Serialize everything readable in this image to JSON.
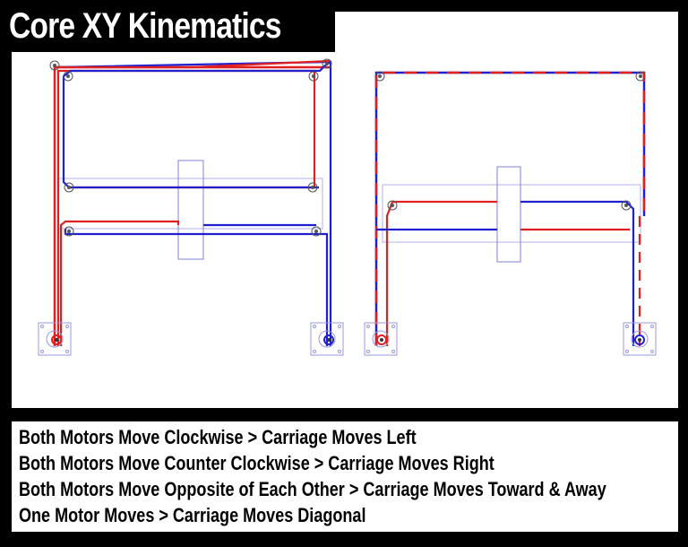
{
  "title": "Core XY Kinematics",
  "captions": [
    "Both Motors Move Clockwise  > Carriage Moves Left",
    "Both Motors Move Counter Clockwise > Carriage Moves Right",
    "Both Motors Move Opposite of Each Other > Carriage Moves Toward & Away",
    "One Motor Moves > Carriage Moves Diagonal"
  ],
  "colors": {
    "belt_a": "#e02020",
    "belt_b": "#2020d0",
    "frame": "#9a9ae0",
    "pulley": "#555555"
  }
}
